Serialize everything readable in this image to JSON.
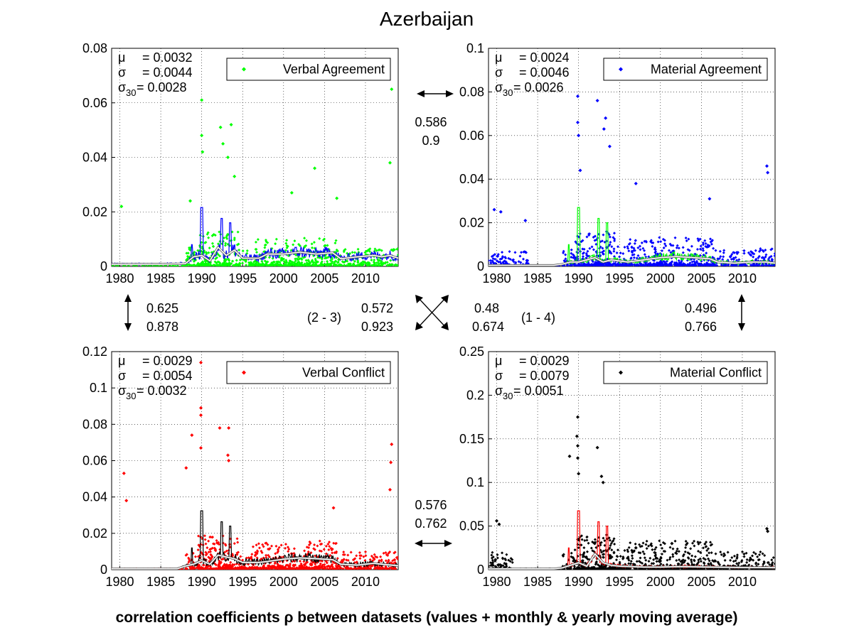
{
  "title": "Azerbaijan",
  "footer": "correlation coefficients ρ between datasets (values + monthly & yearly moving average)",
  "x_ticks": [
    1980,
    1985,
    1990,
    1995,
    2000,
    2005,
    2010
  ],
  "chart_data": [
    {
      "type": "scatter",
      "name": "Verbal Agreement",
      "legend": "Verbal Agreement",
      "marker_color": "#00ff00",
      "monthly_avg_color": "#0000ff",
      "yearly_avg_color": "#ffffff",
      "xlim": [
        1979,
        2014
      ],
      "ylim": [
        0,
        0.08
      ],
      "y_ticks": [
        "0",
        "0.02",
        "0.04",
        "0.06",
        "0.08"
      ],
      "grid": true,
      "legend_position": "top-right",
      "stats": {
        "mu": "= 0.0032",
        "sigma": "= 0.0044",
        "sigma30": "= 0.0028"
      },
      "peaks": [
        [
          1988.6,
          0.024
        ],
        [
          1990.0,
          0.061
        ],
        [
          1990.0,
          0.048
        ],
        [
          1990.1,
          0.042
        ],
        [
          1992.3,
          0.051
        ],
        [
          1992.6,
          0.045
        ],
        [
          1993.6,
          0.052
        ],
        [
          1993.2,
          0.04
        ],
        [
          1994.0,
          0.033
        ],
        [
          2003.8,
          0.036
        ],
        [
          2013.2,
          0.065
        ],
        [
          2013.0,
          0.038
        ],
        [
          1980.2,
          0.022
        ],
        [
          2001.0,
          0.027
        ],
        [
          2006.5,
          0.025
        ]
      ],
      "yearly_avg": [
        [
          1979,
          0.0008
        ],
        [
          1985,
          0.0008
        ],
        [
          1988,
          0.001
        ],
        [
          1989,
          0.0035
        ],
        [
          1990,
          0.004
        ],
        [
          1991,
          0.002
        ],
        [
          1992,
          0.007
        ],
        [
          1993,
          0.004
        ],
        [
          1994,
          0.006
        ],
        [
          1995,
          0.003
        ],
        [
          1997,
          0.003
        ],
        [
          1998,
          0.0045
        ],
        [
          2000,
          0.0045
        ],
        [
          2002,
          0.0052
        ],
        [
          2004,
          0.0045
        ],
        [
          2006,
          0.005
        ],
        [
          2007,
          0.0028
        ],
        [
          2009,
          0.0035
        ],
        [
          2011,
          0.004
        ],
        [
          2012,
          0.0035
        ],
        [
          2013,
          0.004
        ],
        [
          2014,
          0.003
        ]
      ]
    },
    {
      "type": "scatter",
      "name": "Material Agreement",
      "legend": "Material Agreement",
      "marker_color": "#0000ff",
      "monthly_avg_color": "#00ff00",
      "yearly_avg_color": "#ffffff",
      "xlim": [
        1979,
        2014
      ],
      "ylim": [
        0,
        0.1
      ],
      "y_ticks": [
        "0",
        "0.02",
        "0.04",
        "0.06",
        "0.08",
        "0.1"
      ],
      "grid": true,
      "legend_position": "top-right",
      "stats": {
        "mu": "= 0.0024",
        "sigma": "= 0.0046",
        "sigma30": "= 0.0026"
      },
      "peaks": [
        [
          1989.9,
          0.078
        ],
        [
          1989.9,
          0.066
        ],
        [
          1990.0,
          0.06
        ],
        [
          1992.3,
          0.076
        ],
        [
          1993.3,
          0.068
        ],
        [
          1993.1,
          0.063
        ],
        [
          1993.8,
          0.055
        ],
        [
          1990.2,
          0.044
        ],
        [
          2013.0,
          0.046
        ],
        [
          2013.1,
          0.043
        ],
        [
          1979.7,
          0.026
        ],
        [
          1980.5,
          0.025
        ],
        [
          1983.5,
          0.021
        ],
        [
          1997.0,
          0.038
        ],
        [
          2006.0,
          0.031
        ]
      ],
      "yearly_avg": [
        [
          1979,
          0.0005
        ],
        [
          1987,
          0.0005
        ],
        [
          1988,
          0.001
        ],
        [
          1989,
          0.002
        ],
        [
          1990,
          0.002
        ],
        [
          1991,
          0.003
        ],
        [
          1992,
          0.004
        ],
        [
          1993,
          0.002
        ],
        [
          1994,
          0.003
        ],
        [
          1996,
          0.002
        ],
        [
          1998,
          0.003
        ],
        [
          2000,
          0.004
        ],
        [
          2002,
          0.0045
        ],
        [
          2004,
          0.004
        ],
        [
          2006,
          0.0035
        ],
        [
          2007,
          0.002
        ],
        [
          2009,
          0.0015
        ],
        [
          2011,
          0.002
        ],
        [
          2013,
          0.002
        ],
        [
          2014,
          0.0015
        ]
      ]
    },
    {
      "type": "scatter",
      "name": "Verbal Conflict",
      "legend": "Verbal Conflict",
      "marker_color": "#ff0000",
      "monthly_avg_color": "#000000",
      "yearly_avg_color": "#ffffff",
      "xlim": [
        1979,
        2014
      ],
      "ylim": [
        0,
        0.12
      ],
      "y_ticks": [
        "0",
        "0.02",
        "0.04",
        "0.06",
        "0.08",
        "0.1",
        "0.12"
      ],
      "grid": true,
      "legend_position": "top-right",
      "stats": {
        "mu": "= 0.0029",
        "sigma": "= 0.0054",
        "sigma30": "= 0.0032"
      },
      "peaks": [
        [
          1989.9,
          0.114
        ],
        [
          1989.9,
          0.089
        ],
        [
          1989.9,
          0.085
        ],
        [
          1988.8,
          0.074
        ],
        [
          1989.9,
          0.067
        ],
        [
          1992.2,
          0.078
        ],
        [
          1993.3,
          0.078
        ],
        [
          1993.2,
          0.063
        ],
        [
          1993.3,
          0.06
        ],
        [
          1980.5,
          0.053
        ],
        [
          1980.8,
          0.038
        ],
        [
          2013.2,
          0.069
        ],
        [
          2013.1,
          0.059
        ],
        [
          2013.0,
          0.044
        ],
        [
          1988.1,
          0.056
        ],
        [
          2006.1,
          0.034
        ]
      ],
      "yearly_avg": [
        [
          1979,
          0.0005
        ],
        [
          1987,
          0.0005
        ],
        [
          1988,
          0.002
        ],
        [
          1989,
          0.003
        ],
        [
          1990,
          0.005
        ],
        [
          1991,
          0.003
        ],
        [
          1992,
          0.008
        ],
        [
          1993,
          0.007
        ],
        [
          1994,
          0.006
        ],
        [
          1995,
          0.004
        ],
        [
          1997,
          0.004
        ],
        [
          1998,
          0.0045
        ],
        [
          2000,
          0.0058
        ],
        [
          2002,
          0.0065
        ],
        [
          2004,
          0.006
        ],
        [
          2006,
          0.0055
        ],
        [
          2007,
          0.003
        ],
        [
          2009,
          0.0025
        ],
        [
          2011,
          0.0035
        ],
        [
          2012,
          0.003
        ],
        [
          2014,
          0.0022
        ]
      ]
    },
    {
      "type": "scatter",
      "name": "Material Conflict",
      "legend": "Material Conflict",
      "marker_color": "#000000",
      "monthly_avg_color": "#ff0000",
      "yearly_avg_color": "#ffffff",
      "xlim": [
        1979,
        2014
      ],
      "ylim": [
        0,
        0.25
      ],
      "y_ticks": [
        "0",
        "0.05",
        "0.1",
        "0.15",
        "0.2",
        "0.25"
      ],
      "grid": true,
      "legend_position": "top-right",
      "stats": {
        "mu": "= 0.0029",
        "sigma": "= 0.0079",
        "sigma30": "= 0.0051"
      },
      "peaks": [
        [
          1989.9,
          0.175
        ],
        [
          1989.8,
          0.153
        ],
        [
          1989.9,
          0.142
        ],
        [
          1989.9,
          0.128
        ],
        [
          1988.9,
          0.13
        ],
        [
          1992.3,
          0.14
        ],
        [
          1992.8,
          0.107
        ],
        [
          1993.0,
          0.1
        ],
        [
          1990.0,
          0.11
        ],
        [
          1980.0,
          0.056
        ],
        [
          1980.3,
          0.052
        ],
        [
          2013.0,
          0.047
        ],
        [
          2013.1,
          0.044
        ],
        [
          2001.4,
          0.03
        ],
        [
          1997.0,
          0.025
        ]
      ],
      "yearly_avg": [
        [
          1979,
          0.001
        ],
        [
          1987,
          0.001
        ],
        [
          1988,
          0.002
        ],
        [
          1989,
          0.005
        ],
        [
          1990,
          0.008
        ],
        [
          1991,
          0.004
        ],
        [
          1992,
          0.018
        ],
        [
          1993,
          0.008
        ],
        [
          1994,
          0.005
        ],
        [
          1995,
          0.004
        ],
        [
          1998,
          0.003
        ],
        [
          2000,
          0.003
        ],
        [
          2002,
          0.0035
        ],
        [
          2004,
          0.0033
        ],
        [
          2006,
          0.003
        ],
        [
          2008,
          0.0028
        ],
        [
          2010,
          0.0025
        ],
        [
          2012,
          0.0025
        ],
        [
          2014,
          0.0024
        ]
      ]
    }
  ],
  "correlations": {
    "top_pair": {
      "a": "0.586",
      "b": "0.9"
    },
    "left_pair": {
      "a": "0.625",
      "b": "0.878"
    },
    "right_pair": {
      "a": "0.496",
      "b": "0.766"
    },
    "bottom_pair": {
      "a": "0.576",
      "b": "0.762"
    },
    "diag_23": {
      "label": "(2 - 3)",
      "a": "0.572",
      "b": "0.923"
    },
    "diag_14": {
      "label": "(1 - 4)",
      "a": "0.48",
      "b": "0.674"
    }
  }
}
